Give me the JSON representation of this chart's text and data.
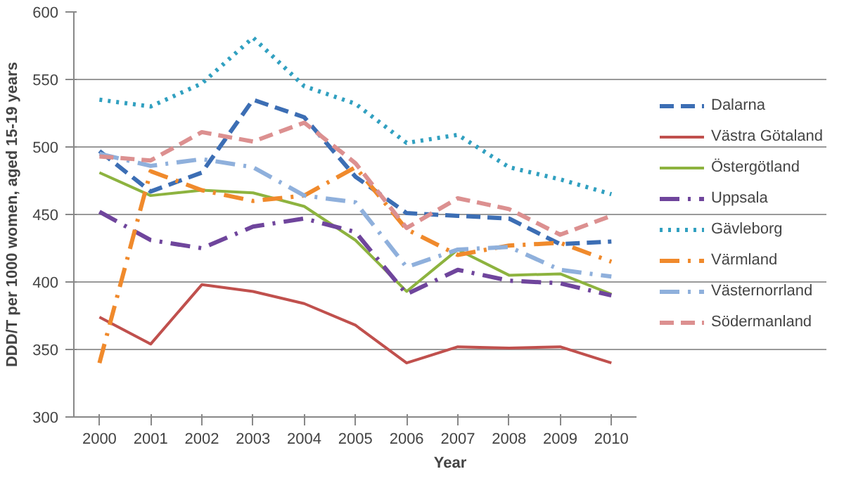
{
  "chart_data": {
    "type": "line",
    "xlabel": "Year",
    "ylabel": "DDD/T per 1000 women, aged 15-19 years",
    "categories": [
      "2000",
      "2001",
      "2002",
      "2003",
      "2004",
      "2005",
      "2006",
      "2007",
      "2008",
      "2009",
      "2010"
    ],
    "ylim": [
      300,
      600
    ],
    "yticks": [
      300,
      350,
      400,
      450,
      500,
      550,
      600
    ],
    "grid": "y",
    "legend": "right",
    "marker": "none",
    "series": [
      {
        "name": "Dalarna",
        "color": "#3c6eb4",
        "line_style": "dashed",
        "values": [
          497,
          467,
          481,
          535,
          522,
          478,
          451,
          449,
          447,
          428,
          430
        ]
      },
      {
        "name": "Västra Götaland",
        "color": "#c0504d",
        "line_style": "solid",
        "values": [
          374,
          354,
          398,
          393,
          384,
          368,
          340,
          352,
          351,
          352,
          340
        ]
      },
      {
        "name": "Östergötland",
        "color": "#8db33f",
        "line_style": "solid",
        "values": [
          481,
          464,
          468,
          466,
          456,
          431,
          393,
          424,
          405,
          406,
          391
        ]
      },
      {
        "name": "Uppsala",
        "color": "#6f459c",
        "line_style": "dashdot",
        "values": [
          452,
          431,
          425,
          441,
          447,
          437,
          391,
          409,
          401,
          399,
          390
        ]
      },
      {
        "name": "Gävleborg",
        "color": "#31a0c0",
        "line_style": "dotted",
        "values": [
          535,
          530,
          547,
          581,
          545,
          532,
          503,
          509,
          485,
          476,
          465
        ]
      },
      {
        "name": "Värmland",
        "color": "#f08a2c",
        "line_style": "dashdot",
        "values": [
          340,
          482,
          468,
          460,
          464,
          485,
          439,
          420,
          427,
          429,
          415
        ]
      },
      {
        "name": "Västernorrland",
        "color": "#8fb0dc",
        "line_style": "dashdot",
        "values": [
          495,
          486,
          491,
          485,
          464,
          459,
          411,
          424,
          426,
          409,
          404
        ]
      },
      {
        "name": "Södermanland",
        "color": "#dc9090",
        "line_style": "dashed",
        "values": [
          493,
          490,
          511,
          504,
          518,
          488,
          440,
          462,
          454,
          435,
          449
        ]
      }
    ]
  }
}
